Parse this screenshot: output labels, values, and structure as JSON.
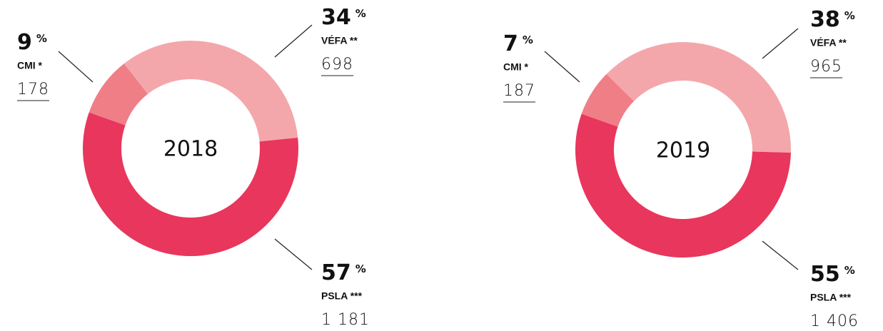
{
  "chart_data": [
    {
      "type": "donut",
      "title": "2018",
      "unit": "%",
      "categories": [
        "CMI *",
        "VÉFA **",
        "PSLA ***"
      ],
      "values": [
        9,
        34,
        57
      ],
      "counts": [
        178,
        698,
        {
          "value": 1181,
          "label": "1 181"
        }
      ],
      "colors": [
        "#f07e87",
        "#f4a7ab",
        "#e8365d"
      ]
    },
    {
      "type": "donut",
      "title": "2019",
      "unit": "%",
      "categories": [
        "CMI *",
        "VÉFA **",
        "PSLA ***"
      ],
      "values": [
        7,
        38,
        55
      ],
      "counts": [
        187,
        965,
        {
          "value": 1406,
          "label": "1 406"
        }
      ],
      "colors": [
        "#f07e87",
        "#f4a7ab",
        "#e8365d"
      ]
    }
  ]
}
